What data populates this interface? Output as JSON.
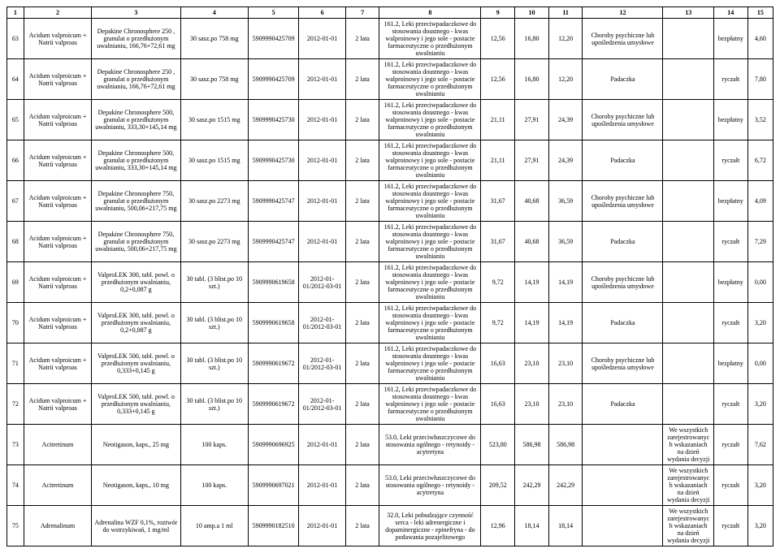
{
  "cols": [
    "1",
    "2",
    "3",
    "4",
    "5",
    "6",
    "7",
    "8",
    "9",
    "10",
    "11",
    "12",
    "13",
    "14",
    "15"
  ],
  "widths": [
    20,
    80,
    105,
    80,
    60,
    55,
    40,
    120,
    40,
    40,
    40,
    95,
    60,
    40,
    30
  ],
  "rows": [
    [
      "63",
      "Acidum valproicum + Natrii valproas",
      "Depakine Chronosphere 250 , granulat o przedłużonym uwalnianiu, 166,76+72,61 mg",
      "30 sasz.po 758 mg",
      "5909990425709",
      "2012-01-01",
      "2 lata",
      "161.2, Leki przeciwpadaczkowe do stosowania doustnego - kwas walproinowy i jego sole - postacie farmaceutyczne o przedłużonym uwalnianiu",
      "12,56",
      "16,80",
      "12,20",
      "Choroby psychiczne lub upośledzenia umysłowe",
      "",
      "bezpłatny",
      "4,60"
    ],
    [
      "64",
      "Acidum valproicum + Natrii valproas",
      "Depakine Chronosphere 250 , granulat o przedłużonym uwalnianiu, 166,76+72,61 mg",
      "30 sasz.po 758 mg",
      "5909990425709",
      "2012-01-01",
      "2 lata",
      "161.2, Leki przeciwpadaczkowe do stosowania doustnego - kwas walproinowy i jego sole - postacie farmaceutyczne o przedłużonym uwalnianiu",
      "12,56",
      "16,80",
      "12,20",
      "Padaczka",
      "",
      "ryczałt",
      "7,80"
    ],
    [
      "65",
      "Acidum valproicum + Natrii valproas",
      "Depakine Chronosphere 500, granulat o przedłużonym uwalnianiu, 333,30+145,14 mg",
      "30 sasz.po 1515 mg",
      "5909990425730",
      "2012-01-01",
      "2 lata",
      "161.2, Leki przeciwpadaczkowe do stosowania doustnego - kwas walproinowy i jego sole - postacie farmaceutyczne o przedłużonym uwalnianiu",
      "21,11",
      "27,91",
      "24,39",
      "Choroby psychiczne lub upośledzenia umysłowe",
      "",
      "bezpłatny",
      "3,52"
    ],
    [
      "66",
      "Acidum valproicum + Natrii valproas",
      "Depakine Chronosphere 500, granulat o przedłużonym uwalnianiu, 333,30+145,14 mg",
      "30 sasz.po 1515 mg",
      "5909990425730",
      "2012-01-01",
      "2 lata",
      "161.2, Leki przeciwpadaczkowe do stosowania doustnego - kwas walproinowy i jego sole - postacie farmaceutyczne o przedłużonym uwalnianiu",
      "21,11",
      "27,91",
      "24,39",
      "Padaczka",
      "",
      "ryczałt",
      "6,72"
    ],
    [
      "67",
      "Acidum valproicum + Natrii valproas",
      "Depakine Chronosphere 750, granulat o przedłużonym uwalnianiu, 500,06+217,75 mg",
      "30 sasz.po 2273 mg",
      "5909990425747",
      "2012-01-01",
      "2 lata",
      "161.2, Leki przeciwpadaczkowe do stosowania doustnego - kwas walproinowy i jego sole - postacie farmaceutyczne o przedłużonym uwalnianiu",
      "31,67",
      "40,68",
      "36,59",
      "Choroby psychiczne lub upośledzenia umysłowe",
      "",
      "bezpłatny",
      "4,09"
    ],
    [
      "68",
      "Acidum valproicum + Natrii valproas",
      "Depakine Chronosphere 750, granulat o przedłużonym uwalnianiu, 500,06+217,75 mg",
      "30 sasz.po 2273 mg",
      "5909990425747",
      "2012-01-01",
      "2 lata",
      "161.2, Leki przeciwpadaczkowe do stosowania doustnego - kwas walproinowy i jego sole - postacie farmaceutyczne o przedłużonym uwalnianiu",
      "31,67",
      "40,68",
      "36,59",
      "Padaczka",
      "",
      "ryczałt",
      "7,29"
    ],
    [
      "69",
      "Acidum valproicum + Natrii valproas",
      "ValproLEK 300, tabl. powl. o przedłużonym uwalnianiu, 0,2+0,087 g",
      "30 tabl. (3 blist.po 10 szt.)",
      "5909990619658",
      "2012-01-01/2012-03-01",
      "2 lata",
      "161.2, Leki przeciwpadaczkowe do stosowania doustnego - kwas walproinowy i jego sole - postacie farmaceutyczne o przedłużonym uwalnianiu",
      "9,72",
      "14,19",
      "14,19",
      "Choroby psychiczne lub upośledzenia umysłowe",
      "",
      "bezpłatny",
      "0,00"
    ],
    [
      "70",
      "Acidum valproicum + Natrii valproas",
      "ValproLEK 300, tabl. powl. o przedłużonym uwalnianiu, 0,2+0,087 g",
      "30 tabl. (3 blist.po 10 szt.)",
      "5909990619658",
      "2012-01-01/2012-03-01",
      "2 lata",
      "161.2, Leki przeciwpadaczkowe do stosowania doustnego - kwas walproinowy i jego sole - postacie farmaceutyczne o przedłużonym uwalnianiu",
      "9,72",
      "14,19",
      "14,19",
      "Padaczka",
      "",
      "ryczałt",
      "3,20"
    ],
    [
      "71",
      "Acidum valproicum + Natrii valproas",
      "ValproLEK 500, tabl. powl. o przedłużonym uwalnianiu, 0,333+0,145 g",
      "30 tabl. (3 blist.po 10 szt.)",
      "5909990619672",
      "2012-01-01/2012-03-01",
      "2 lata",
      "161.2, Leki przeciwpadaczkowe do stosowania doustnego - kwas walproinowy i jego sole - postacie farmaceutyczne o przedłużonym uwalnianiu",
      "16,63",
      "23,10",
      "23,10",
      "Choroby psychiczne lub upośledzenia umysłowe",
      "",
      "bezpłatny",
      "0,00"
    ],
    [
      "72",
      "Acidum valproicum + Natrii valproas",
      "ValproLEK 500, tabl. powl. o przedłużonym uwalnianiu, 0,333+0,145 g",
      "30 tabl. (3 blist.po 10 szt.)",
      "5909990619672",
      "2012-01-01/2012-03-01",
      "2 lata",
      "161.2, Leki przeciwpadaczkowe do stosowania doustnego - kwas walproinowy i jego sole - postacie farmaceutyczne o przedłużonym uwalnianiu",
      "16,63",
      "23,10",
      "23,10",
      "Padaczka",
      "",
      "ryczałt",
      "3,20"
    ],
    [
      "73",
      "Acitretinum",
      "Neotigason, kaps., 25 mg",
      "100 kaps.",
      "5909990696925",
      "2012-01-01",
      "2 lata",
      "53.0, Leki przeciwłuszczycowe do stosowania ogólnego - retynoidy - acytretyna",
      "523,80",
      "586,98",
      "586,98",
      "",
      "We wszystkich zarejestrowanych wskazaniach na dzień wydania decyzji",
      "ryczałt",
      "7,62"
    ],
    [
      "74",
      "Acitretinum",
      "Neotigason, kaps., 10 mg",
      "100 kaps.",
      "5909990697021",
      "2012-01-01",
      "2 lata",
      "53.0, Leki przeciwłuszczycowe do stosowania ogólnego - retynoidy - acytretyna",
      "209,52",
      "242,29",
      "242,29",
      "",
      "We wszystkich zarejestrowanych wskazaniach na dzień wydania decyzji",
      "ryczałt",
      "3,20"
    ],
    [
      "75",
      "Adrenalinum",
      "Adrenalina WZF 0,1%, roztwór do wstrzykiwań, 1 mg/ml",
      "10 amp.a 1 ml",
      "5909990182510",
      "2012-01-01",
      "2 lata",
      "32.0, Leki pobudzające czynność serca - leki adrenergiczne i dopaminergiczne - epinefryna - do podawania pozajelitowego",
      "12,96",
      "18,14",
      "18,14",
      "",
      "We wszystkich zarejestrowanych wskazaniach na dzień wydania decyzji",
      "ryczałt",
      "3,20"
    ]
  ]
}
